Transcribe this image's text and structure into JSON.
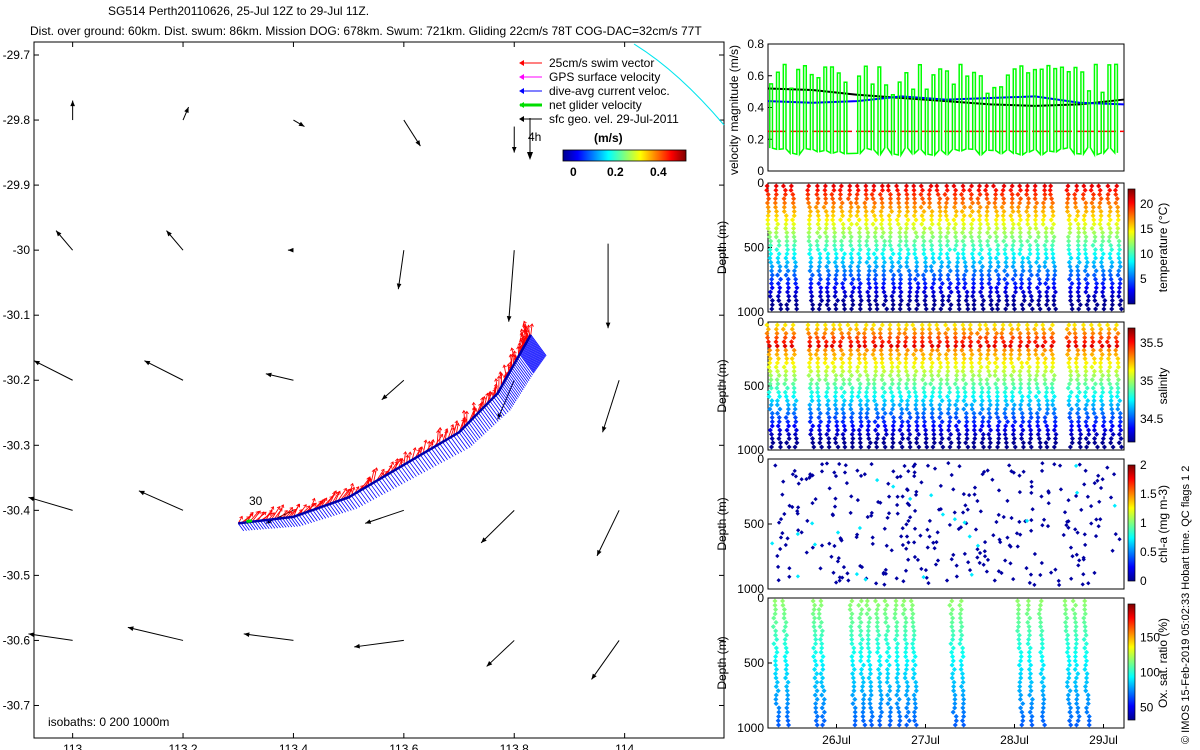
{
  "header": {
    "line1": "SG514 Perth20110626, 25-Jul 12Z to 29-Jul 11Z.",
    "line2": "Dist. over ground: 60km. Dist. swum: 86km. Mission DOG: 678km. Swum: 721km. Gliding 22cm/s 78T COG-DAC=32cm/s 77T"
  },
  "credit": "© IMOS 15-Feb-2019 05:02:33 Hobart time. QC flags 1 2",
  "chart_data": [
    {
      "type": "scatter",
      "id": "map",
      "x_ticks": [
        "113",
        "113.2",
        "113.4",
        "113.6",
        "113.8",
        "114"
      ],
      "y_ticks": [
        "-29.7",
        "-29.8",
        "-29.9",
        "-30",
        "-30.1",
        "-30.2",
        "-30.3",
        "-30.4",
        "-30.5",
        "-30.6",
        "-30.7"
      ],
      "xlim": [
        112.93,
        114.18
      ],
      "ylim": [
        -30.75,
        -29.68
      ],
      "legend": [
        {
          "label": "25cm/s swim vector",
          "color": "#ff0000"
        },
        {
          "label": "GPS surface velocity",
          "color": "#ff00ff"
        },
        {
          "label": "dive-avg current veloc.",
          "color": "#0000ff"
        },
        {
          "label": "net glider velocity",
          "color": "#00dd00"
        },
        {
          "label": "sfc geo. vel. 29-Jul-2011",
          "color": "#000000"
        }
      ],
      "colorbar": {
        "label": "(m/s)",
        "ticks": [
          "0",
          "0.2",
          "0.4"
        ],
        "range": [
          0,
          0.5
        ]
      },
      "annotations": [
        "4h",
        "30",
        "isobaths: 0   200   1000m"
      ],
      "track": [
        [
          113.3,
          -30.42
        ],
        [
          113.4,
          -30.41
        ],
        [
          113.5,
          -30.38
        ],
        [
          113.6,
          -30.33
        ],
        [
          113.7,
          -30.28
        ],
        [
          113.77,
          -30.22
        ],
        [
          113.81,
          -30.16
        ],
        [
          113.83,
          -30.13
        ]
      ],
      "geo_arrows": [
        [
          113.0,
          -29.8,
          113.0,
          -29.77
        ],
        [
          113.2,
          -29.8,
          113.21,
          -29.78
        ],
        [
          113.4,
          -29.8,
          113.42,
          -29.81
        ],
        [
          113.6,
          -29.8,
          113.63,
          -29.84
        ],
        [
          113.8,
          -29.81,
          113.8,
          -29.85
        ],
        [
          113.0,
          -30.0,
          112.97,
          -29.97
        ],
        [
          113.2,
          -30.0,
          113.17,
          -29.97
        ],
        [
          113.4,
          -30.0,
          113.39,
          -30.0
        ],
        [
          113.6,
          -30.0,
          113.59,
          -30.06
        ],
        [
          113.8,
          -30.0,
          113.79,
          -30.11
        ],
        [
          113.97,
          -29.99,
          113.97,
          -30.12
        ],
        [
          113.0,
          -30.2,
          112.93,
          -30.17
        ],
        [
          113.2,
          -30.2,
          113.13,
          -30.17
        ],
        [
          113.4,
          -30.2,
          113.35,
          -30.19
        ],
        [
          113.6,
          -30.2,
          113.56,
          -30.23
        ],
        [
          113.8,
          -30.2,
          113.77,
          -30.26
        ],
        [
          113.99,
          -30.2,
          113.96,
          -30.28
        ],
        [
          113.0,
          -30.4,
          112.92,
          -30.38
        ],
        [
          113.2,
          -30.4,
          113.12,
          -30.37
        ],
        [
          113.4,
          -30.4,
          113.35,
          -30.42
        ],
        [
          113.6,
          -30.4,
          113.53,
          -30.42
        ],
        [
          113.8,
          -30.4,
          113.74,
          -30.45
        ],
        [
          113.99,
          -30.4,
          113.95,
          -30.47
        ],
        [
          113.0,
          -30.6,
          112.92,
          -30.59
        ],
        [
          113.2,
          -30.6,
          113.1,
          -30.58
        ],
        [
          113.4,
          -30.6,
          113.31,
          -30.59
        ],
        [
          113.6,
          -30.6,
          113.51,
          -30.61
        ],
        [
          113.8,
          -30.6,
          113.75,
          -30.64
        ],
        [
          113.99,
          -30.6,
          113.94,
          -30.66
        ]
      ]
    },
    {
      "type": "line",
      "id": "velocity",
      "ylabel": "velocity magnitude (m/s)",
      "ylim": [
        0,
        0.8
      ],
      "y_ticks": [
        "0",
        "0.2",
        "0.4",
        "0.6",
        "0.8"
      ],
      "xlim": [
        25.5,
        29.5
      ],
      "series": [
        {
          "color": "#000000",
          "x": [
            25.5,
            26.0,
            26.5,
            27.0,
            27.5,
            28.0,
            28.5,
            29.0,
            29.5
          ],
          "values": [
            0.52,
            0.51,
            0.48,
            0.46,
            0.44,
            0.42,
            0.41,
            0.42,
            0.45
          ]
        },
        {
          "color": "#0000ff",
          "x": [
            25.5,
            26.0,
            26.5,
            27.0,
            27.5,
            28.0,
            28.5,
            29.0,
            29.5
          ],
          "values": [
            0.44,
            0.43,
            0.44,
            0.47,
            0.45,
            0.46,
            0.47,
            0.43,
            0.42
          ]
        },
        {
          "color": "#ff0000",
          "x": [
            25.5,
            29.5
          ],
          "values": [
            0.25,
            0.25
          ]
        },
        {
          "color": "#00ff00",
          "x": [
            25.5,
            25.6,
            25.7,
            26.0,
            26.3,
            26.6,
            27.0,
            27.3,
            27.6,
            28.0,
            28.3,
            28.6,
            29.0,
            29.3,
            29.5
          ],
          "values": [
            0.1,
            0.6,
            0.1,
            0.66,
            0.12,
            0.61,
            0.1,
            0.62,
            0.12,
            0.68,
            0.12,
            0.6,
            0.1,
            0.62,
            0.1
          ]
        }
      ]
    },
    {
      "type": "scatter",
      "id": "temperature",
      "ylabel": "Depth (m)",
      "colorbar_label": "temperature (°C)",
      "colorbar_ticks": [
        "5",
        "10",
        "15",
        "20"
      ],
      "y_ticks": [
        "0",
        "500",
        "1000"
      ]
    },
    {
      "type": "scatter",
      "id": "salinity",
      "ylabel": "Depth (m)",
      "colorbar_label": "salinity",
      "colorbar_ticks": [
        "34.5",
        "35",
        "35.5"
      ],
      "y_ticks": [
        "0",
        "500",
        "1000"
      ]
    },
    {
      "type": "scatter",
      "id": "chla",
      "ylabel": "Depth (m)",
      "colorbar_label": "chl-a (mg m-3)",
      "colorbar_ticks": [
        "0",
        "0.5",
        "1",
        "1.5",
        "2"
      ],
      "y_ticks": [
        "0",
        "500",
        "1000"
      ]
    },
    {
      "type": "scatter",
      "id": "oxygen",
      "ylabel": "Depth (m)",
      "colorbar_label": "Ox. sat. ratio (%)",
      "colorbar_ticks": [
        "50",
        "100",
        "150"
      ],
      "y_ticks": [
        "0",
        "500",
        "1000"
      ],
      "x_ticks": [
        "26Jul",
        "27Jul",
        "28Jul",
        "29Jul"
      ]
    }
  ]
}
